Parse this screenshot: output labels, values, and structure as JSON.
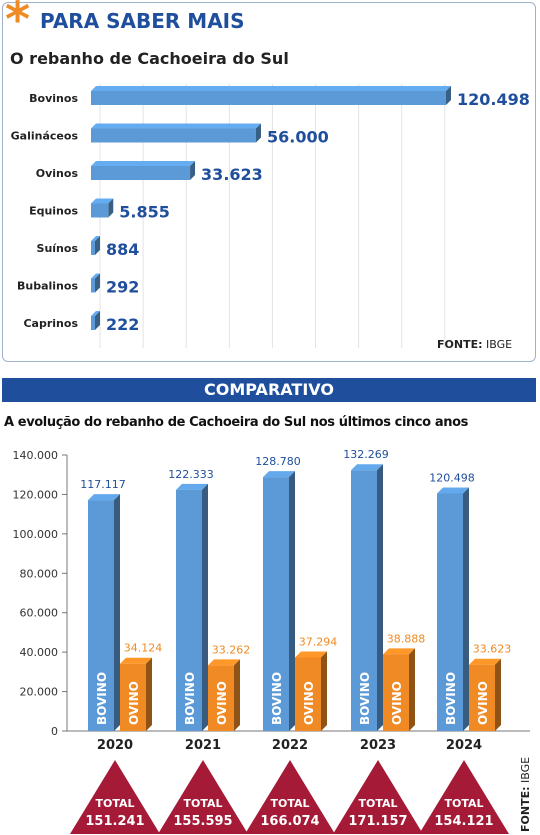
{
  "header": {
    "asterisk": "*",
    "title": "PARA SABER MAIS",
    "subtitle": "O rebanho de Cachoeira do Sul"
  },
  "source_top": {
    "label": "FONTE:",
    "value": "IBGE"
  },
  "comparativo": {
    "banner": "COMPARATIVO",
    "subtitle": "A evolução do rebanho de Cachoeira do Sul nos últimos cinco anos"
  },
  "source_bottom": {
    "label": "FONTE:",
    "value": "IBGE"
  },
  "colors": {
    "accent_orange": "#f08a24",
    "brand_blue": "#1f4e9c",
    "bar_blue": "#5b9ad6",
    "bar_orange": "#f08a24",
    "triangle_red": "#a51a37"
  },
  "chart_data": [
    {
      "type": "bar",
      "orientation": "horizontal",
      "title": "O rebanho de Cachoeira do Sul",
      "categories": [
        "Bovinos",
        "Galináceos",
        "Ovinos",
        "Equinos",
        "Suínos",
        "Bubalinos",
        "Caprinos"
      ],
      "values": [
        120498,
        56000,
        33623,
        5855,
        884,
        292,
        222
      ],
      "value_labels": [
        "120.498",
        "56.000",
        "33.623",
        "5.855",
        "884",
        "292",
        "222"
      ]
    },
    {
      "type": "bar",
      "title": "A evolução do rebanho de Cachoeira do Sul nos últimos cinco anos",
      "categories": [
        "2020",
        "2021",
        "2022",
        "2023",
        "2024"
      ],
      "ylim": [
        0,
        140000
      ],
      "yticks": [
        "0",
        "20.000",
        "40.000",
        "60.000",
        "80.000",
        "100.000",
        "120.000",
        "140.000"
      ],
      "series": [
        {
          "name": "BOVINO",
          "values": [
            117117,
            122333,
            128780,
            132269,
            120498
          ],
          "labels": [
            "117.117",
            "122.333",
            "128.780",
            "132.269",
            "120.498"
          ]
        },
        {
          "name": "OVINO",
          "values": [
            34124,
            33262,
            37294,
            38888,
            33623
          ],
          "labels": [
            "34.124",
            "33.262",
            "37.294",
            "38.888",
            "33.623"
          ]
        }
      ],
      "totals": {
        "label": "TOTAL",
        "values": [
          151241,
          155595,
          166074,
          171157,
          154121
        ],
        "labels": [
          "151.241",
          "155.595",
          "166.074",
          "171.157",
          "154.121"
        ]
      }
    }
  ]
}
